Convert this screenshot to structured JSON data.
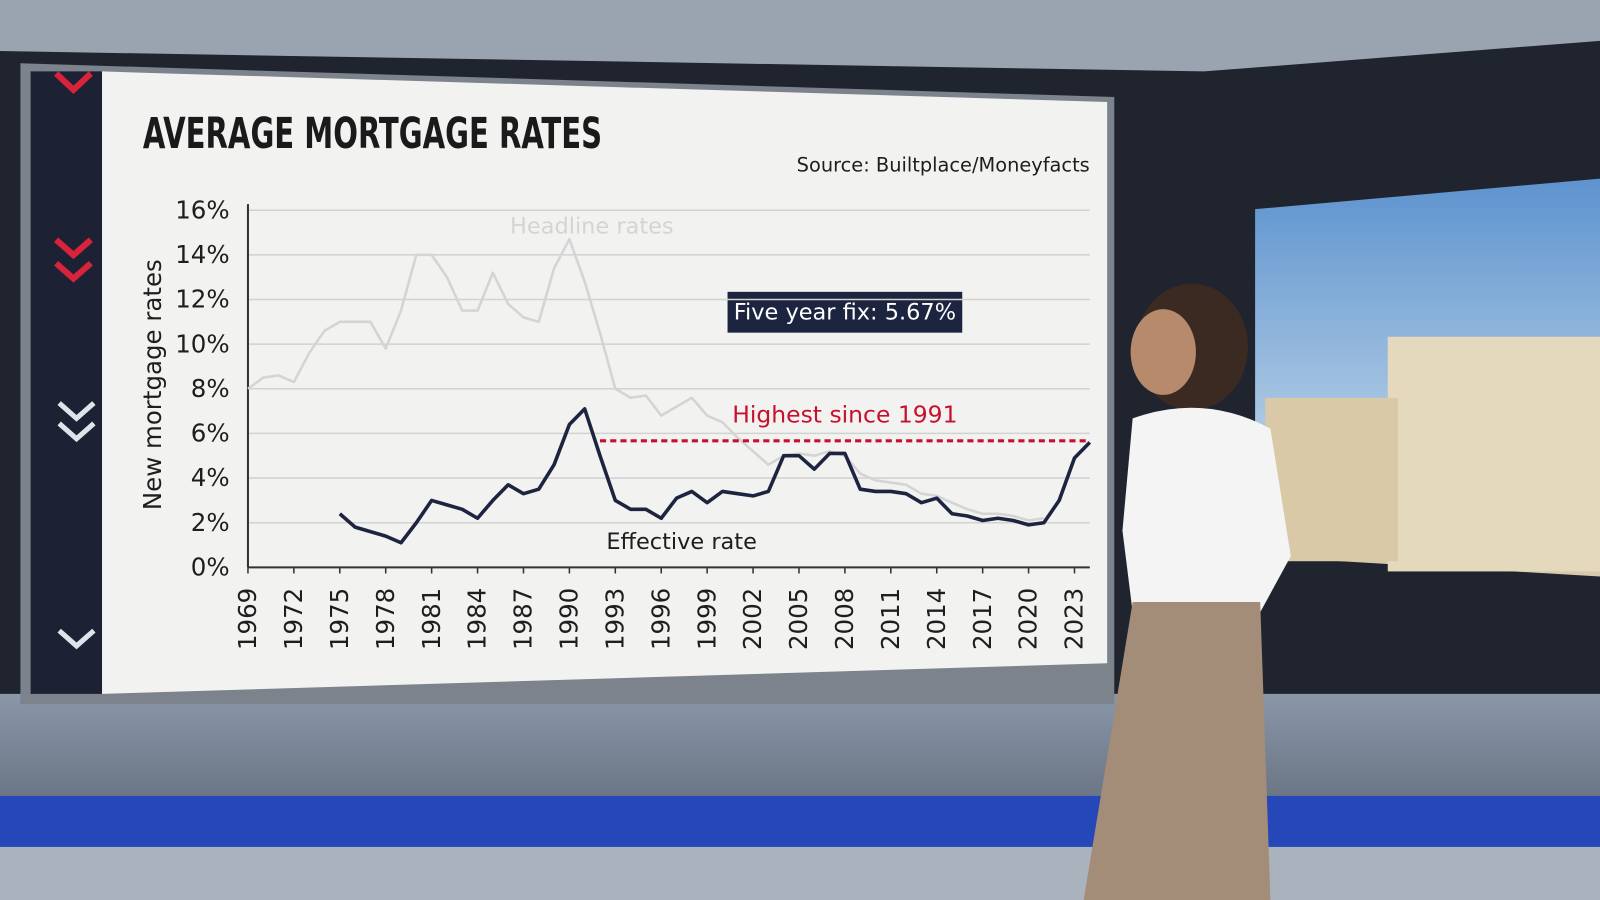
{
  "chart_data": {
    "type": "line",
    "title": "AVERAGE MORTGAGE RATES",
    "source": "Source:  Builtplace/Moneyfacts",
    "ylabel": "New mortgage rates",
    "xlim": [
      1969,
      2024
    ],
    "xticks": [
      1969,
      1972,
      1975,
      1978,
      1981,
      1984,
      1987,
      1990,
      1993,
      1996,
      1999,
      2002,
      2005,
      2008,
      2011,
      2014,
      2017,
      2020,
      2023
    ],
    "ylim": [
      0,
      16
    ],
    "yticks": [
      {
        "value": 0,
        "label": "0%"
      },
      {
        "value": 2,
        "label": "2%"
      },
      {
        "value": 4,
        "label": "4%"
      },
      {
        "value": 6,
        "label": "6%"
      },
      {
        "value": 8,
        "label": "8%"
      },
      {
        "value": 10,
        "label": "10%"
      },
      {
        "value": 12,
        "label": "12%"
      },
      {
        "value": 14,
        "label": "14%"
      },
      {
        "value": 16,
        "label": "16%"
      }
    ],
    "grid": true,
    "x": [
      1969,
      1970,
      1971,
      1972,
      1973,
      1974,
      1975,
      1976,
      1977,
      1978,
      1979,
      1980,
      1981,
      1982,
      1983,
      1984,
      1985,
      1986,
      1987,
      1988,
      1989,
      1990,
      1991,
      1992,
      1993,
      1994,
      1995,
      1996,
      1997,
      1998,
      1999,
      2000,
      2001,
      2002,
      2003,
      2004,
      2005,
      2006,
      2007,
      2008,
      2009,
      2010,
      2011,
      2012,
      2013,
      2014,
      2015,
      2016,
      2017,
      2018,
      2019,
      2020,
      2021,
      2022,
      2023,
      2024
    ],
    "series": [
      {
        "name": "Headline rates",
        "color": "#d4d4d4",
        "values": [
          8.0,
          8.5,
          8.6,
          8.3,
          9.6,
          10.6,
          11.0,
          11.0,
          11.0,
          9.8,
          11.5,
          14.0,
          14.0,
          13.0,
          11.5,
          11.5,
          13.2,
          11.8,
          11.2,
          11.0,
          13.4,
          14.7,
          12.8,
          10.5,
          8.0,
          7.6,
          7.7,
          6.8,
          7.2,
          7.6,
          6.8,
          6.5,
          5.8,
          5.2,
          4.6,
          5.0,
          5.1,
          5.0,
          5.2,
          5.0,
          4.2,
          3.9,
          3.8,
          3.7,
          3.3,
          3.2,
          2.9,
          2.6,
          2.4,
          2.4,
          2.3,
          2.1,
          2.2,
          null,
          null,
          null
        ]
      },
      {
        "name": "Effective rate",
        "color": "#1c2440",
        "values": [
          null,
          null,
          null,
          null,
          null,
          null,
          2.4,
          1.8,
          1.6,
          1.4,
          1.1,
          2.0,
          3.0,
          2.8,
          2.6,
          2.2,
          3.0,
          3.7,
          3.3,
          3.5,
          4.6,
          6.4,
          7.1,
          5.0,
          3.0,
          2.6,
          2.6,
          2.2,
          3.1,
          3.4,
          2.9,
          3.4,
          3.3,
          3.2,
          3.4,
          5.0,
          5.0,
          4.4,
          5.1,
          5.1,
          3.5,
          3.4,
          3.4,
          3.3,
          2.9,
          3.1,
          2.4,
          2.3,
          2.1,
          2.2,
          2.1,
          1.9,
          2.0,
          3.0,
          4.9,
          5.6
        ]
      }
    ],
    "reference_line": {
      "label": "Highest since 1991",
      "value": 5.67,
      "from": 1992,
      "to": 2024,
      "color": "#c8102e"
    },
    "callout": "Five year fix: 5.67%"
  }
}
